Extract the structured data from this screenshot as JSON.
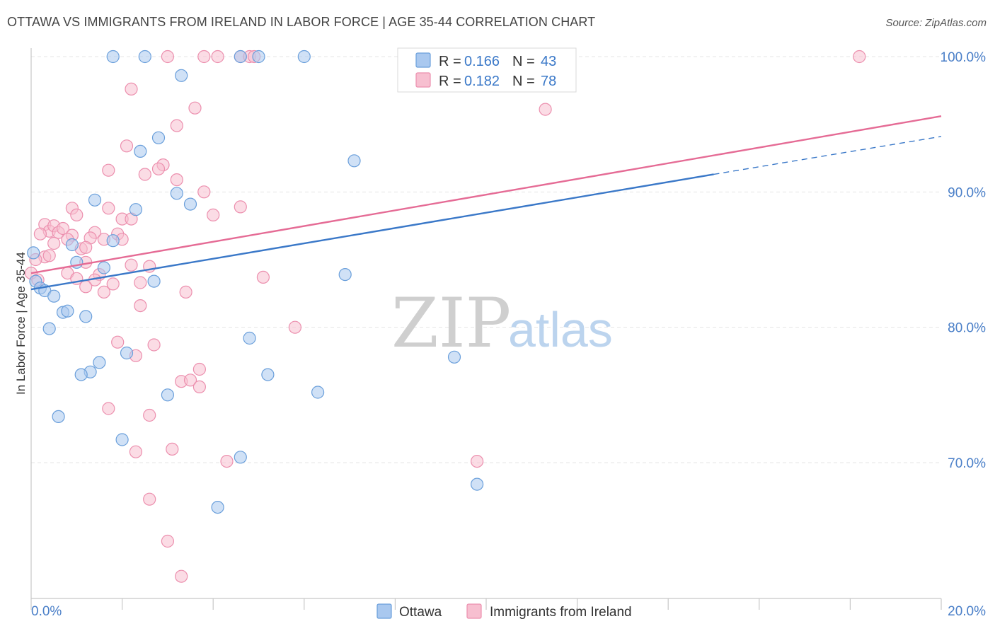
{
  "header": {
    "title": "OTTAWA VS IMMIGRANTS FROM IRELAND IN LABOR FORCE | AGE 35-44 CORRELATION CHART",
    "source": "Source: ZipAtlas.com"
  },
  "watermark": {
    "zip": "ZIP",
    "atlas": "atlas"
  },
  "legend": {
    "r_label": "R =",
    "n_label": "N =",
    "rows": [
      {
        "r": "0.166",
        "n": "43"
      },
      {
        "r": "0.182",
        "n": "78"
      }
    ]
  },
  "bottom_legend": [
    "Ottawa",
    "Immigrants from Ireland"
  ],
  "colors": {
    "ottawa_fill": "#a9c8ef",
    "ottawa_stroke": "#6a9fdb",
    "ottawa_line": "#3a78c8",
    "ireland_fill": "#f7bfd0",
    "ireland_stroke": "#ec8fae",
    "ireland_line": "#e56b95",
    "tick_text": "#4a7fc8"
  },
  "chart_data": {
    "type": "scatter",
    "title": "OTTAWA VS IMMIGRANTS FROM IRELAND IN LABOR FORCE | AGE 35-44 CORRELATION CHART",
    "xlabel": "",
    "ylabel": "In Labor Force | Age 35-44",
    "xlim": [
      0,
      20
    ],
    "ylim": [
      60.5,
      101.5
    ],
    "x_tick_labels": [
      "0.0%",
      "20.0%"
    ],
    "y_ticks": [
      70,
      80,
      90,
      100
    ],
    "y_tick_labels": [
      "70.0%",
      "80.0%",
      "90.0%",
      "100.0%"
    ],
    "grid": true,
    "legend_position": "top-center",
    "series": [
      {
        "name": "Ottawa",
        "r": 0.166,
        "n": 43,
        "trend": {
          "x": [
            0,
            15
          ],
          "y": [
            82.8,
            91.3
          ],
          "dashed_to": [
            20,
            94.1
          ]
        },
        "points": [
          [
            1.8,
            100
          ],
          [
            2.5,
            100
          ],
          [
            4.6,
            100
          ],
          [
            5.0,
            100
          ],
          [
            6.0,
            100
          ],
          [
            11.5,
            100
          ],
          [
            3.3,
            98.6
          ],
          [
            2.8,
            94
          ],
          [
            2.4,
            93
          ],
          [
            7.1,
            92.3
          ],
          [
            3.2,
            89.9
          ],
          [
            1.4,
            89.4
          ],
          [
            3.5,
            89.1
          ],
          [
            2.3,
            88.7
          ],
          [
            1.8,
            86.4
          ],
          [
            0.9,
            86.1
          ],
          [
            1.0,
            84.8
          ],
          [
            1.6,
            84.4
          ],
          [
            2.7,
            83.4
          ],
          [
            6.9,
            83.9
          ],
          [
            0.1,
            83.4
          ],
          [
            0.2,
            82.9
          ],
          [
            0.3,
            82.7
          ],
          [
            0.5,
            82.3
          ],
          [
            0.7,
            81.1
          ],
          [
            0.8,
            81.2
          ],
          [
            1.2,
            80.8
          ],
          [
            0.4,
            79.9
          ],
          [
            4.8,
            79.2
          ],
          [
            2.1,
            78.1
          ],
          [
            1.5,
            77.4
          ],
          [
            1.3,
            76.7
          ],
          [
            1.1,
            76.5
          ],
          [
            5.2,
            76.5
          ],
          [
            3.0,
            75
          ],
          [
            6.3,
            75.2
          ],
          [
            9.3,
            77.8
          ],
          [
            0.6,
            73.4
          ],
          [
            2.0,
            71.7
          ],
          [
            4.6,
            70.4
          ],
          [
            9.8,
            68.4
          ],
          [
            4.1,
            66.7
          ],
          [
            0.05,
            85.5
          ]
        ]
      },
      {
        "name": "Immigrants from Ireland",
        "r": 0.182,
        "n": 78,
        "trend": {
          "x": [
            0,
            20
          ],
          "y": [
            84,
            95.6
          ]
        },
        "points": [
          [
            3.0,
            100
          ],
          [
            3.8,
            100
          ],
          [
            4.1,
            100
          ],
          [
            4.6,
            100
          ],
          [
            4.8,
            100
          ],
          [
            4.9,
            100
          ],
          [
            8.2,
            100
          ],
          [
            18.2,
            100
          ],
          [
            2.2,
            97.6
          ],
          [
            3.6,
            96.2
          ],
          [
            11.3,
            96.1
          ],
          [
            3.2,
            94.9
          ],
          [
            2.1,
            93.4
          ],
          [
            2.9,
            92
          ],
          [
            1.7,
            91.6
          ],
          [
            2.5,
            91.3
          ],
          [
            2.8,
            91.7
          ],
          [
            3.2,
            90.9
          ],
          [
            3.8,
            90
          ],
          [
            4.6,
            88.9
          ],
          [
            1.7,
            88.8
          ],
          [
            0.9,
            88.8
          ],
          [
            1.0,
            88.3
          ],
          [
            4.0,
            88.3
          ],
          [
            2.0,
            88
          ],
          [
            0.3,
            87.6
          ],
          [
            0.4,
            87.1
          ],
          [
            0.5,
            87.5
          ],
          [
            0.6,
            87
          ],
          [
            0.7,
            87.3
          ],
          [
            0.2,
            86.9
          ],
          [
            0.9,
            86.8
          ],
          [
            1.4,
            87
          ],
          [
            1.9,
            86.9
          ],
          [
            0.8,
            86.5
          ],
          [
            1.3,
            86.6
          ],
          [
            0.5,
            86.2
          ],
          [
            1.1,
            85.8
          ],
          [
            0.3,
            85.2
          ],
          [
            0.1,
            85
          ],
          [
            1.2,
            85.9
          ],
          [
            2.0,
            86.5
          ],
          [
            1.2,
            84.8
          ],
          [
            2.2,
            84.6
          ],
          [
            2.6,
            84.5
          ],
          [
            0.8,
            84
          ],
          [
            1.5,
            83.9
          ],
          [
            0.0,
            84
          ],
          [
            1.0,
            83.6
          ],
          [
            1.4,
            83.5
          ],
          [
            2.4,
            83.3
          ],
          [
            1.8,
            83.2
          ],
          [
            5.1,
            83.7
          ],
          [
            1.2,
            83
          ],
          [
            1.6,
            82.6
          ],
          [
            3.4,
            82.6
          ],
          [
            2.4,
            81.6
          ],
          [
            5.8,
            80
          ],
          [
            1.9,
            78.9
          ],
          [
            2.7,
            78.7
          ],
          [
            2.3,
            77.9
          ],
          [
            3.7,
            76.9
          ],
          [
            3.3,
            76
          ],
          [
            3.5,
            76.1
          ],
          [
            3.7,
            75.6
          ],
          [
            1.7,
            74
          ],
          [
            2.6,
            73.5
          ],
          [
            2.3,
            70.8
          ],
          [
            3.1,
            71
          ],
          [
            4.3,
            70.1
          ],
          [
            9.8,
            70.1
          ],
          [
            2.6,
            67.3
          ],
          [
            3.0,
            64.2
          ],
          [
            3.3,
            61.6
          ],
          [
            0.15,
            83.5
          ],
          [
            0.4,
            85.3
          ],
          [
            2.2,
            88
          ],
          [
            1.6,
            86.5
          ]
        ]
      }
    ]
  }
}
